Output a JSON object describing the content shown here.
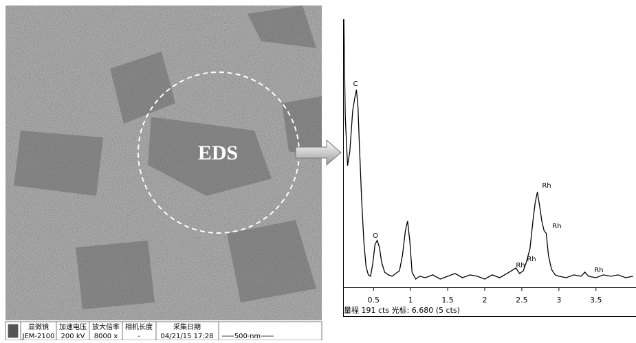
{
  "tem_image": {
    "label": "EDS",
    "info_table": {
      "headers": [
        "显微镜",
        "加速电压",
        "放大倍率",
        "相机长度",
        "采集日期"
      ],
      "values": [
        "JEM-2100",
        "200 kV",
        "8000 x",
        "-",
        "04/21/15  17:28"
      ]
    },
    "scale_bar": "500 nm"
  },
  "chart_data": {
    "type": "line",
    "x": [
      0.1,
      0.12,
      0.15,
      0.18,
      0.22,
      0.25,
      0.27,
      0.29,
      0.31,
      0.34,
      0.37,
      0.4,
      0.43,
      0.46,
      0.49,
      0.52,
      0.55,
      0.58,
      0.61,
      0.65,
      0.7,
      0.75,
      0.8,
      0.85,
      0.89,
      0.93,
      0.96,
      0.99,
      1.02,
      1.07,
      1.12,
      1.2,
      1.3,
      1.4,
      1.5,
      1.6,
      1.7,
      1.8,
      1.9,
      2.0,
      2.1,
      2.2,
      2.3,
      2.36,
      2.42,
      2.47,
      2.52,
      2.56,
      2.61,
      2.65,
      2.68,
      2.71,
      2.74,
      2.77,
      2.8,
      2.83,
      2.86,
      2.9,
      2.95,
      3.0,
      3.1,
      3.2,
      3.3,
      3.35,
      3.4,
      3.5,
      3.6,
      3.7,
      3.8,
      3.9,
      4.0
    ],
    "series": [
      {
        "color": "#000000",
        "values": [
          191,
          120,
          85,
          95,
          125,
          135,
          140,
          128,
          100,
          60,
          30,
          12,
          6,
          5,
          14,
          28,
          31,
          26,
          15,
          8,
          6,
          5,
          7,
          9,
          20,
          38,
          45,
          30,
          8,
          3,
          5,
          4,
          6,
          3,
          5,
          7,
          4,
          6,
          5,
          3,
          6,
          4,
          7,
          9,
          11,
          7,
          9,
          15,
          25,
          45,
          58,
          66,
          56,
          45,
          38,
          36,
          20,
          10,
          6,
          5,
          4,
          6,
          5,
          8,
          5,
          4,
          6,
          5,
          6,
          4,
          5
        ]
      }
    ],
    "xlim": [
      0.09,
      4.04
    ],
    "ylim": [
      0,
      191
    ],
    "xticks": [
      0.5,
      1,
      1.5,
      2,
      2.5,
      3,
      3.5
    ],
    "annotations": [
      "C",
      "O",
      "Rh",
      "Rh",
      "Rh",
      "Rh",
      "Rh"
    ],
    "footer": "量程 191 cts 光标: 6.680 (5 cts)"
  }
}
